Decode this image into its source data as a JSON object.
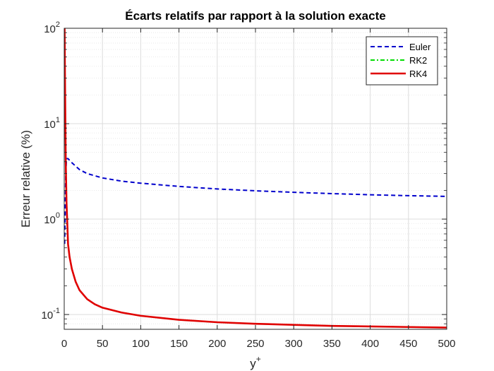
{
  "chart_data": {
    "type": "line",
    "title": "Écarts relatifs par rapport à la solution exacte",
    "xlabel": "y",
    "xlabel_superscript": "+",
    "ylabel": "Erreur relative (%)",
    "xscale": "linear",
    "yscale": "log",
    "xlim": [
      0,
      500
    ],
    "ylim": [
      0.07,
      100
    ],
    "xticks": [
      0,
      50,
      100,
      150,
      200,
      250,
      300,
      350,
      400,
      450,
      500
    ],
    "xtick_labels": [
      "0",
      "50",
      "100",
      "150",
      "200",
      "250",
      "300",
      "350",
      "400",
      "450",
      "500"
    ],
    "yticks": [
      0.1,
      1,
      10,
      100
    ],
    "ytick_labels": [
      {
        "base": "10",
        "exp": "-1"
      },
      {
        "base": "10",
        "exp": "0"
      },
      {
        "base": "10",
        "exp": "1"
      },
      {
        "base": "10",
        "exp": "2"
      }
    ],
    "grid": true,
    "minor_grid": true,
    "legend_position": "top-right",
    "series": [
      {
        "name": "Euler",
        "color": "#0000cc",
        "style": "dashed",
        "x": [
          0.5,
          1,
          2,
          3,
          5,
          10,
          20,
          30,
          50,
          75,
          100,
          150,
          200,
          250,
          300,
          350,
          400,
          450,
          500
        ],
        "y": [
          0.55,
          0.9,
          3.0,
          4.3,
          4.3,
          3.9,
          3.3,
          3.0,
          2.7,
          2.5,
          2.38,
          2.2,
          2.07,
          1.98,
          1.91,
          1.85,
          1.8,
          1.76,
          1.73
        ]
      },
      {
        "name": "RK2",
        "color": "#00dd00",
        "style": "dashdot",
        "x": [
          0.5,
          1,
          2,
          3,
          5,
          7,
          10,
          15,
          20,
          30,
          40,
          50,
          75,
          100,
          150,
          200,
          250,
          300,
          350,
          400,
          450,
          500
        ],
        "y": [
          100,
          30,
          4.0,
          1.5,
          0.55,
          0.4,
          0.3,
          0.22,
          0.18,
          0.145,
          0.128,
          0.118,
          0.105,
          0.097,
          0.088,
          0.083,
          0.08,
          0.078,
          0.076,
          0.075,
          0.074,
          0.073
        ]
      },
      {
        "name": "RK4",
        "color": "#e00000",
        "style": "solid",
        "x": [
          0.5,
          1,
          2,
          3,
          5,
          7,
          10,
          15,
          20,
          30,
          40,
          50,
          75,
          100,
          150,
          200,
          250,
          300,
          350,
          400,
          450,
          500
        ],
        "y": [
          100,
          30,
          4.0,
          1.5,
          0.55,
          0.4,
          0.3,
          0.22,
          0.18,
          0.145,
          0.128,
          0.118,
          0.105,
          0.097,
          0.088,
          0.083,
          0.08,
          0.078,
          0.076,
          0.075,
          0.074,
          0.073
        ]
      }
    ]
  }
}
